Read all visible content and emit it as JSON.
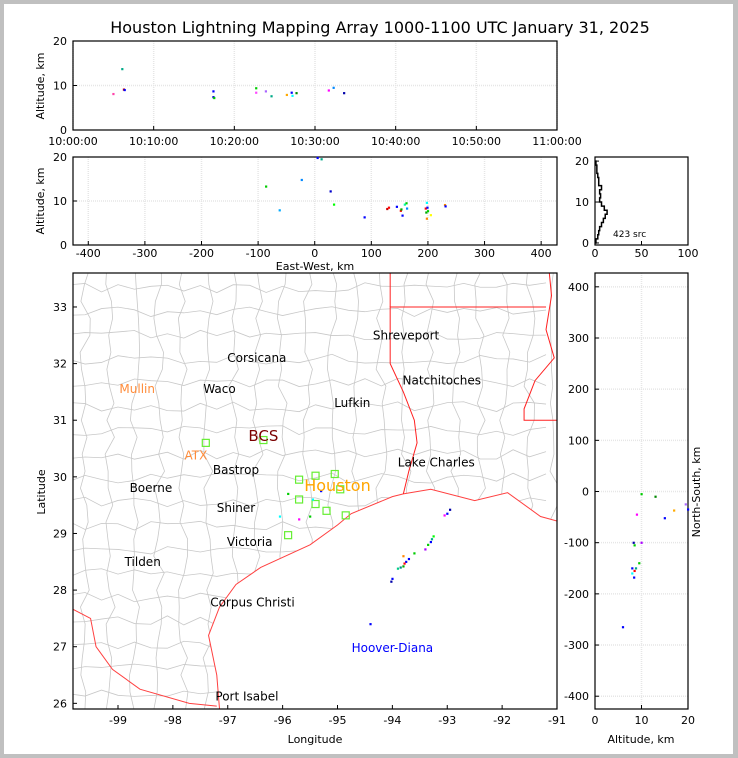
{
  "chart_data": [
    {
      "type": "scatter",
      "id": "time-height",
      "title": "Houston Lightning Mapping Array 1000-1100 UTC January 31, 2025",
      "xlabel": "",
      "ylabel": "Altitude, km",
      "xlim_minutes": [
        0,
        60
      ],
      "ylim": [
        0,
        20
      ],
      "xticks": [
        "10:00:00",
        "10:10:00",
        "10:20:00",
        "10:30:00",
        "10:40:00",
        "10:50:00",
        "11:00:00"
      ],
      "yticks": [
        "0",
        "10",
        "20"
      ],
      "points": [
        [
          5.0,
          8.1,
          "#ff44aa"
        ],
        [
          6.1,
          13.7,
          "#00aa88"
        ],
        [
          6.3,
          9.1,
          "#cc0000"
        ],
        [
          6.4,
          9.0,
          "#0000ff"
        ],
        [
          17.4,
          8.7,
          "#0000ff"
        ],
        [
          17.4,
          7.4,
          "#0000cc"
        ],
        [
          17.5,
          7.2,
          "#00cc00"
        ],
        [
          22.7,
          9.4,
          "#00cc00"
        ],
        [
          22.7,
          8.4,
          "#ff44ff"
        ],
        [
          23.9,
          8.7,
          "#aa66ff"
        ],
        [
          24.6,
          7.6,
          "#00aa88"
        ],
        [
          26.5,
          7.9,
          "#ffaa00"
        ],
        [
          27.1,
          8.4,
          "#0000ff"
        ],
        [
          27.2,
          7.7,
          "#00ffff"
        ],
        [
          27.7,
          8.3,
          "#008800"
        ],
        [
          31.7,
          8.9,
          "#ff00ff"
        ],
        [
          32.3,
          9.5,
          "#0088ff"
        ],
        [
          33.6,
          8.3,
          "#0000aa"
        ]
      ]
    },
    {
      "type": "scatter",
      "id": "east-west-altitude",
      "xlabel": "East-West, km",
      "ylabel": "Altitude, km",
      "xlim": [
        -427,
        428
      ],
      "ylim": [
        0,
        20
      ],
      "xticks": [
        "-400",
        "-300",
        "-200",
        "-100",
        "0",
        "100",
        "200",
        "300",
        "400"
      ],
      "yticks": [
        "0",
        "10",
        "20"
      ],
      "points": [
        [
          -86,
          13.3,
          "#00cc00"
        ],
        [
          -62,
          7.9,
          "#00aaff"
        ],
        [
          -23,
          14.8,
          "#0088ff"
        ],
        [
          5,
          19.8,
          "#0000ff"
        ],
        [
          12,
          19.5,
          "#00aa88"
        ],
        [
          28,
          12.2,
          "#0000cc"
        ],
        [
          34,
          9.2,
          "#00ff00"
        ],
        [
          88,
          6.3,
          "#0000ff"
        ],
        [
          128,
          8.2,
          "#cc0000"
        ],
        [
          131,
          8.5,
          "#ff0000"
        ],
        [
          145,
          8.7,
          "#0000ff"
        ],
        [
          152,
          7.8,
          "#ff0000"
        ],
        [
          153,
          8.1,
          "#00aa00"
        ],
        [
          155,
          6.7,
          "#0000ff"
        ],
        [
          159,
          9.2,
          "#00ffaa"
        ],
        [
          162,
          9.5,
          "#00cc00"
        ],
        [
          163,
          8.3,
          "#0088ff"
        ],
        [
          196,
          8.3,
          "#ff0000"
        ],
        [
          197,
          7.4,
          "#00aa00"
        ],
        [
          199,
          8.5,
          "#0000ff"
        ],
        [
          200,
          7.7,
          "#00cc00"
        ],
        [
          198,
          6.0,
          "#ff8800"
        ],
        [
          198,
          9.6,
          "#00ffff"
        ],
        [
          205,
          6.8,
          "#ffff00"
        ],
        [
          230,
          9.1,
          "#ff8800"
        ],
        [
          231,
          8.8,
          "#0000ff"
        ]
      ]
    },
    {
      "type": "bar",
      "id": "altitude-histogram",
      "xlim": [
        0,
        100
      ],
      "ylim": [
        0,
        20
      ],
      "xticks": [
        "0",
        "50",
        "100"
      ],
      "yticks": [
        "0",
        "10",
        "20"
      ],
      "annotation": "423 src",
      "altitude_km": [
        1,
        2,
        3,
        4,
        5,
        6,
        7,
        8,
        9,
        10,
        11,
        12,
        13,
        14,
        15,
        16,
        17,
        18,
        19,
        20
      ],
      "counts": [
        1,
        3,
        4,
        5,
        7,
        9,
        11,
        13,
        10,
        7,
        5,
        6,
        5,
        7,
        4,
        4,
        3,
        2,
        2,
        1
      ]
    },
    {
      "type": "scatter",
      "id": "plan-view",
      "xlabel": "Longitude",
      "ylabel": "Latitude",
      "xlim": [
        -99.82,
        -91.0
      ],
      "ylim": [
        25.9,
        33.6
      ],
      "xticks": [
        "-99",
        "-98",
        "-97",
        "-96",
        "-95",
        "-94",
        "-93",
        "-92",
        "-91"
      ],
      "yticks": [
        "26",
        "27",
        "28",
        "29",
        "30",
        "31",
        "32",
        "33"
      ],
      "places": [
        {
          "name": "Shreveport",
          "color": "#000000"
        },
        {
          "name": "Corsicana",
          "color": "#000000"
        },
        {
          "name": "Natchitoches",
          "color": "#000000"
        },
        {
          "name": "Mullin",
          "color": "#ff8c3a"
        },
        {
          "name": "Waco",
          "color": "#000000"
        },
        {
          "name": "Lufkin",
          "color": "#000000"
        },
        {
          "name": "BCS",
          "color": "#7a0000"
        },
        {
          "name": "ATX",
          "color": "#ff8c3a"
        },
        {
          "name": "Bastrop",
          "color": "#000000"
        },
        {
          "name": "Lake Charles",
          "color": "#000000"
        },
        {
          "name": "Boerne",
          "color": "#000000"
        },
        {
          "name": "Houston",
          "color": "#ffa500"
        },
        {
          "name": "Shiner",
          "color": "#000000"
        },
        {
          "name": "Victoria",
          "color": "#000000"
        },
        {
          "name": "Tilden",
          "color": "#000000"
        },
        {
          "name": "Corpus Christi",
          "color": "#000000"
        },
        {
          "name": "Hoover-Diana",
          "color": "#0000ff"
        },
        {
          "name": "Port Isabel",
          "color": "#000000"
        }
      ],
      "stations": [
        [
          -97.4,
          30.6
        ],
        [
          -96.35,
          30.65
        ],
        [
          -95.7,
          29.95
        ],
        [
          -95.4,
          30.02
        ],
        [
          -95.05,
          30.05
        ],
        [
          -95.7,
          29.6
        ],
        [
          -95.4,
          29.52
        ],
        [
          -95.2,
          29.4
        ],
        [
          -94.85,
          29.32
        ],
        [
          -95.9,
          28.97
        ],
        [
          -94.95,
          29.78
        ]
      ],
      "points": [
        [
          -93.0,
          29.35,
          "#0000ff"
        ],
        [
          -93.05,
          29.32,
          "#ff00ff"
        ],
        [
          -92.95,
          29.42,
          "#0000aa"
        ],
        [
          -93.3,
          28.85,
          "#0000ff"
        ],
        [
          -93.35,
          28.8,
          "#00cc00"
        ],
        [
          -93.28,
          28.9,
          "#00aa88"
        ],
        [
          -93.25,
          28.95,
          "#00ff00"
        ],
        [
          -93.4,
          28.72,
          "#aa00ff"
        ],
        [
          -93.6,
          28.65,
          "#00cc00"
        ],
        [
          -93.75,
          28.5,
          "#0000ff"
        ],
        [
          -93.8,
          28.42,
          "#00aa00"
        ],
        [
          -93.85,
          28.4,
          "#008888"
        ],
        [
          -93.9,
          28.38,
          "#00cc88"
        ],
        [
          -93.78,
          28.47,
          "#ff0000"
        ],
        [
          -93.7,
          28.55,
          "#0000ff"
        ],
        [
          -94.0,
          28.2,
          "#0000ff"
        ],
        [
          -94.02,
          28.15,
          "#0000aa"
        ],
        [
          -93.8,
          28.6,
          "#ff8800"
        ],
        [
          -94.4,
          27.4,
          "#0000ff"
        ],
        [
          -95.9,
          29.7,
          "#00cc00"
        ],
        [
          -95.45,
          29.6,
          "#00ffff"
        ],
        [
          -95.3,
          29.75,
          "#0000ff"
        ],
        [
          -95.7,
          29.25,
          "#ff00ff"
        ],
        [
          -96.05,
          29.3,
          "#00ffff"
        ],
        [
          -95.5,
          29.3,
          "#00cc00"
        ]
      ]
    },
    {
      "type": "scatter",
      "id": "altitude-north-south",
      "xlabel": "Altitude, km",
      "ylabel": "North-South, km",
      "xlim": [
        0,
        20
      ],
      "ylim": [
        -425,
        427
      ],
      "xticks": [
        "0",
        "10",
        "20"
      ],
      "yticks": [
        "-400",
        "-300",
        "-200",
        "-100",
        "0",
        "100",
        "200",
        "300",
        "400"
      ],
      "points": [
        [
          10,
          -5,
          "#00cc00"
        ],
        [
          13,
          -10,
          "#008800"
        ],
        [
          19.5,
          -25,
          "#aa66ff"
        ],
        [
          20,
          -35,
          "#0000ff"
        ],
        [
          9,
          -45,
          "#ff00ff"
        ],
        [
          15,
          -52,
          "#0000ff"
        ],
        [
          8.3,
          -100,
          "#0000aa"
        ],
        [
          8.5,
          -105,
          "#00cc00"
        ],
        [
          10,
          -100,
          "#aa00ff"
        ],
        [
          9.5,
          -140,
          "#00cc00"
        ],
        [
          8,
          -150,
          "#0000ff"
        ],
        [
          8.5,
          -155,
          "#ff0000"
        ],
        [
          8.8,
          -150,
          "#00aa88"
        ],
        [
          8,
          -160,
          "#00ffff"
        ],
        [
          8.4,
          -168,
          "#0000ff"
        ],
        [
          6,
          -265,
          "#0000ff"
        ],
        [
          17,
          -37,
          "#ffaa00"
        ]
      ]
    }
  ]
}
